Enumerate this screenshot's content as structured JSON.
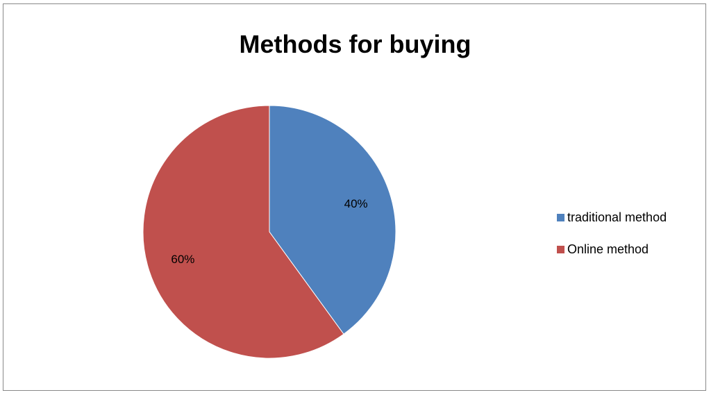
{
  "chart_data": {
    "type": "pie",
    "title": "Methods for buying",
    "categories": [
      "traditional method",
      "Online method"
    ],
    "values": [
      40,
      60
    ],
    "data_labels": [
      "40%",
      "60%"
    ],
    "colors": [
      "#4F81BD",
      "#C0504D"
    ],
    "legend_position": "right",
    "start_angle": "12 o'clock",
    "direction": "clockwise"
  }
}
